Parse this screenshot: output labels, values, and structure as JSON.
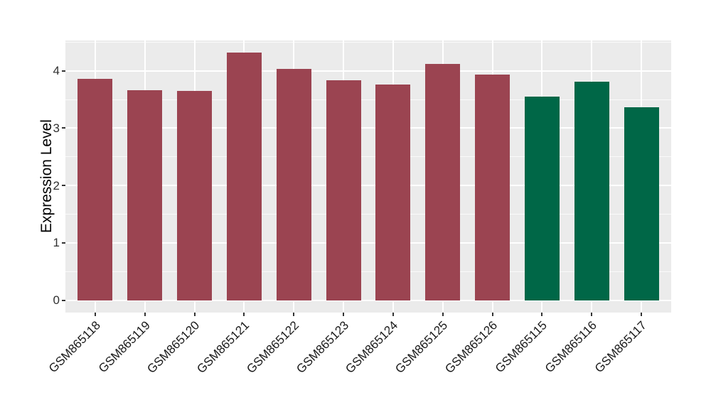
{
  "chart_data": {
    "type": "bar",
    "title": "",
    "xlabel": "",
    "ylabel": "Expression Level",
    "categories": [
      "GSM865118",
      "GSM865119",
      "GSM865120",
      "GSM865121",
      "GSM865122",
      "GSM865123",
      "GSM865124",
      "GSM865125",
      "GSM865126",
      "GSM865115",
      "GSM865116",
      "GSM865117"
    ],
    "values": [
      3.86,
      3.66,
      3.65,
      4.32,
      4.03,
      3.84,
      3.76,
      4.12,
      3.94,
      3.55,
      3.81,
      3.36
    ],
    "bar_colors": [
      "#9B4451",
      "#9B4451",
      "#9B4451",
      "#9B4451",
      "#9B4451",
      "#9B4451",
      "#9B4451",
      "#9B4451",
      "#9B4451",
      "#006747",
      "#006747",
      "#006747"
    ],
    "group_colors": {
      "group1": "#9B4451",
      "group2": "#006747"
    },
    "ytick_labels": [
      "0",
      "1",
      "2",
      "3",
      "4"
    ],
    "ytick_values": [
      0,
      1,
      2,
      3,
      4
    ],
    "ylim": [
      -0.22,
      4.53
    ],
    "grid": "major-and-minor, white on grey panel",
    "legend_position": "none",
    "panel_background": "#EBEBEB",
    "gridline_color": "#FFFFFF",
    "x_label_rotation_deg": 45
  }
}
